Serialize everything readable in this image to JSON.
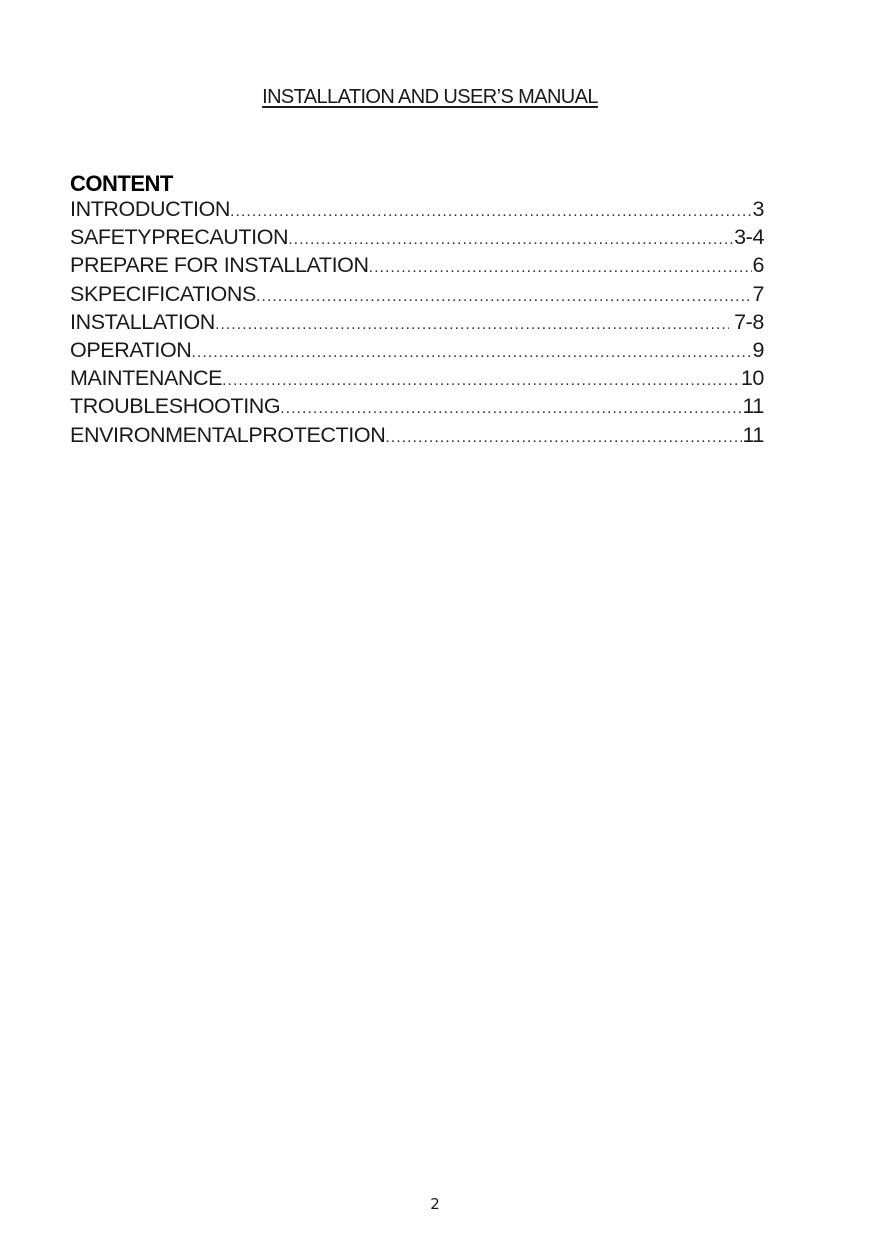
{
  "title": "INSTALLATION AND USER’S MANUAL",
  "heading": "CONTENT",
  "toc": [
    {
      "label": "INTRODUCTION",
      "page": "3"
    },
    {
      "label": "SAFETYPRECAUTION",
      "page": "3-4"
    },
    {
      "label": "PREPARE FOR INSTALLATION",
      "page": "6"
    },
    {
      "label": "SKPECIFICATIONS",
      "page": "7"
    },
    {
      "label": "INSTALLATION",
      "page": " 7-8"
    },
    {
      "label": "OPERATION",
      "page": "9"
    },
    {
      "label": "MAINTENANCE",
      "page": "10"
    },
    {
      "label": "TROUBLESHOOTING",
      "page": "11"
    },
    {
      "label": "ENVIRONMENTALPROTECTION",
      "page": "11"
    }
  ],
  "page_number": "2"
}
